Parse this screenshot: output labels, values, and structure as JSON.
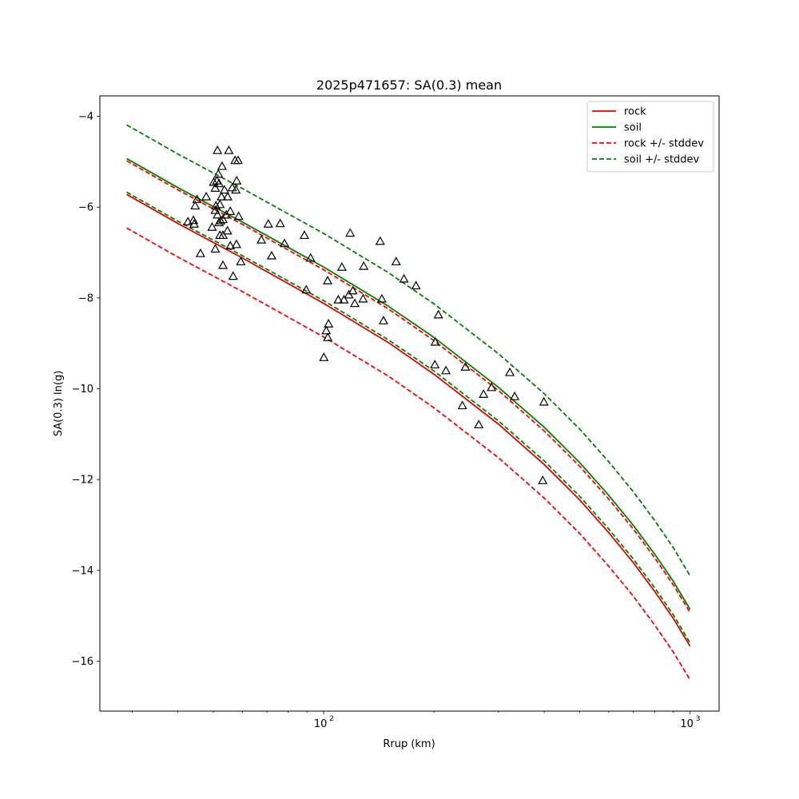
{
  "chart_data": {
    "type": "scatter",
    "title": "2025p471657: SA(0.3) mean",
    "xlabel": "Rrup (km)",
    "ylabel": "SA(0.3) ln(g)",
    "xscale": "log",
    "xlim": [
      24.5,
      1200
    ],
    "ylim": [
      -17.1,
      -3.55
    ],
    "grid": false,
    "legend_position": "top-right",
    "x_ticks": [
      {
        "value": 100,
        "base": "10",
        "exp": "2"
      },
      {
        "value": 1000,
        "base": "10",
        "exp": "3"
      }
    ],
    "y_ticks": [
      {
        "value": -4,
        "label": "−4"
      },
      {
        "value": -6,
        "label": "−6"
      },
      {
        "value": -8,
        "label": "−8"
      },
      {
        "value": -10,
        "label": "−10"
      },
      {
        "value": -12,
        "label": "−12"
      },
      {
        "value": -14,
        "label": "−14"
      },
      {
        "value": -16,
        "label": "−16"
      }
    ],
    "curves_x": [
      29,
      40,
      60,
      100,
      150,
      200,
      300,
      400,
      500,
      600,
      700,
      800,
      900,
      1000
    ],
    "series": [
      {
        "name": "rock",
        "style": "solid",
        "color": "#e00000",
        "values": [
          -5.72,
          -6.36,
          -7.12,
          -8.12,
          -8.98,
          -9.68,
          -10.78,
          -11.67,
          -12.45,
          -13.17,
          -13.83,
          -14.46,
          -15.06,
          -15.67
        ]
      },
      {
        "name": "soil",
        "style": "solid",
        "color": "#008000",
        "values": [
          -4.93,
          -5.57,
          -6.33,
          -7.32,
          -8.18,
          -8.87,
          -9.97,
          -10.85,
          -11.63,
          -12.35,
          -13.01,
          -13.64,
          -14.24,
          -14.86
        ]
      },
      {
        "name": "rock +/- stddev",
        "style": "dashed",
        "color": "#ff0000",
        "values_upper": [
          -4.98,
          -5.62,
          -6.38,
          -7.38,
          -8.24,
          -8.94,
          -10.04,
          -10.93,
          -11.71,
          -12.43,
          -13.09,
          -13.72,
          -14.32,
          -14.93
        ],
        "values_lower": [
          -6.46,
          -7.1,
          -7.86,
          -8.86,
          -9.72,
          -10.42,
          -11.52,
          -12.41,
          -13.19,
          -13.91,
          -14.57,
          -15.2,
          -15.8,
          -16.41
        ]
      },
      {
        "name": "soil +/- stddev",
        "style": "dashed",
        "color": "#008000",
        "values_upper": [
          -4.19,
          -4.83,
          -5.59,
          -6.58,
          -7.44,
          -8.13,
          -9.23,
          -10.11,
          -10.89,
          -11.61,
          -12.27,
          -12.9,
          -13.5,
          -14.12
        ],
        "values_lower": [
          -5.67,
          -6.31,
          -7.07,
          -8.06,
          -8.92,
          -9.61,
          -10.71,
          -11.59,
          -12.37,
          -13.09,
          -13.75,
          -14.38,
          -14.98,
          -15.6
        ]
      }
    ],
    "observations": [
      {
        "x": 51.3,
        "y": -4.75
      },
      {
        "x": 55.1,
        "y": -4.75
      },
      {
        "x": 57.3,
        "y": -4.97
      },
      {
        "x": 58.4,
        "y": -4.97
      },
      {
        "x": 52.8,
        "y": -5.1
      },
      {
        "x": 51.6,
        "y": -5.27
      },
      {
        "x": 50.1,
        "y": -5.45
      },
      {
        "x": 51.1,
        "y": -5.42
      },
      {
        "x": 51.8,
        "y": -5.48
      },
      {
        "x": 57.9,
        "y": -5.42
      },
      {
        "x": 50.6,
        "y": -5.58
      },
      {
        "x": 53.6,
        "y": -5.62
      },
      {
        "x": 56.3,
        "y": -5.57
      },
      {
        "x": 57.6,
        "y": -5.62
      },
      {
        "x": 52.6,
        "y": -5.77
      },
      {
        "x": 54.7,
        "y": -5.77
      },
      {
        "x": 47.8,
        "y": -5.77
      },
      {
        "x": 45.1,
        "y": -5.83
      },
      {
        "x": 44.6,
        "y": -5.97
      },
      {
        "x": 50.8,
        "y": -5.97
      },
      {
        "x": 52.1,
        "y": -5.94
      },
      {
        "x": 50.6,
        "y": -6.07
      },
      {
        "x": 51.3,
        "y": -6.17
      },
      {
        "x": 54.2,
        "y": -6.17
      },
      {
        "x": 55.6,
        "y": -6.09
      },
      {
        "x": 58.6,
        "y": -6.2
      },
      {
        "x": 53.1,
        "y": -6.27
      },
      {
        "x": 51.8,
        "y": -6.34
      },
      {
        "x": 52.3,
        "y": -6.3
      },
      {
        "x": 44.1,
        "y": -6.29
      },
      {
        "x": 42.6,
        "y": -6.32
      },
      {
        "x": 44.3,
        "y": -6.37
      },
      {
        "x": 49.6,
        "y": -6.44
      },
      {
        "x": 54.6,
        "y": -6.52
      },
      {
        "x": 52.1,
        "y": -6.62
      },
      {
        "x": 53.1,
        "y": -6.62
      },
      {
        "x": 67.6,
        "y": -6.72
      },
      {
        "x": 70.6,
        "y": -6.37
      },
      {
        "x": 76.1,
        "y": -6.36
      },
      {
        "x": 55.6,
        "y": -6.85
      },
      {
        "x": 57.8,
        "y": -6.82
      },
      {
        "x": 50.6,
        "y": -6.92
      },
      {
        "x": 46.1,
        "y": -7.02
      },
      {
        "x": 59.4,
        "y": -7.2
      },
      {
        "x": 53.1,
        "y": -7.28
      },
      {
        "x": 56.6,
        "y": -7.52
      },
      {
        "x": 78.2,
        "y": -6.8
      },
      {
        "x": 72.1,
        "y": -7.07
      },
      {
        "x": 88.6,
        "y": -6.62
      },
      {
        "x": 92.1,
        "y": -7.12
      },
      {
        "x": 89.6,
        "y": -7.82
      },
      {
        "x": 102.5,
        "y": -7.62
      },
      {
        "x": 112.1,
        "y": -7.32
      },
      {
        "x": 118.1,
        "y": -6.57
      },
      {
        "x": 128.6,
        "y": -7.3
      },
      {
        "x": 142.6,
        "y": -6.75
      },
      {
        "x": 157.6,
        "y": -7.2
      },
      {
        "x": 165.6,
        "y": -7.58
      },
      {
        "x": 178.6,
        "y": -7.73
      },
      {
        "x": 109.6,
        "y": -8.04
      },
      {
        "x": 113.6,
        "y": -8.04
      },
      {
        "x": 117.1,
        "y": -7.93
      },
      {
        "x": 120.1,
        "y": -7.84
      },
      {
        "x": 121.6,
        "y": -8.12
      },
      {
        "x": 128.1,
        "y": -8.02
      },
      {
        "x": 144.1,
        "y": -8.02
      },
      {
        "x": 145.6,
        "y": -8.5
      },
      {
        "x": 103.1,
        "y": -8.57
      },
      {
        "x": 101.6,
        "y": -8.72
      },
      {
        "x": 102.6,
        "y": -8.87
      },
      {
        "x": 100.1,
        "y": -9.31
      },
      {
        "x": 205.6,
        "y": -8.37
      },
      {
        "x": 201.6,
        "y": -8.97
      },
      {
        "x": 201.1,
        "y": -9.47
      },
      {
        "x": 215.6,
        "y": -9.6
      },
      {
        "x": 243.6,
        "y": -9.52
      },
      {
        "x": 322.1,
        "y": -9.64
      },
      {
        "x": 287.1,
        "y": -9.97
      },
      {
        "x": 273.1,
        "y": -10.12
      },
      {
        "x": 332.1,
        "y": -10.17
      },
      {
        "x": 239.1,
        "y": -10.37
      },
      {
        "x": 399.1,
        "y": -10.29
      },
      {
        "x": 265.1,
        "y": -10.79
      },
      {
        "x": 396.1,
        "y": -12.02
      }
    ]
  }
}
